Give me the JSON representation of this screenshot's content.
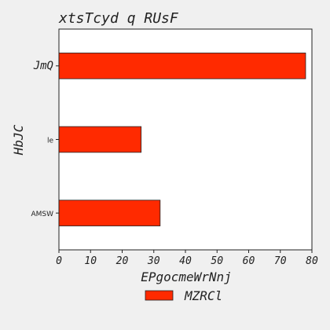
{
  "chart_data": {
    "type": "bar",
    "orientation": "horizontal",
    "title": "xtsTcyd q RUsF",
    "xlabel": "EPgocmeWrNnj",
    "ylabel": "HbJC",
    "categories": [
      "AMSW",
      "le",
      "JmQ"
    ],
    "series": [
      {
        "name": "MZRCl",
        "values": [
          32,
          26,
          78
        ]
      }
    ],
    "xlim": [
      0,
      80
    ],
    "xticks": [
      "0",
      "10",
      "20",
      "30",
      "40",
      "50",
      "60",
      "70",
      "80"
    ],
    "grid": false,
    "legend_position": "bottom-center",
    "bar_color": "#ff2a00"
  }
}
